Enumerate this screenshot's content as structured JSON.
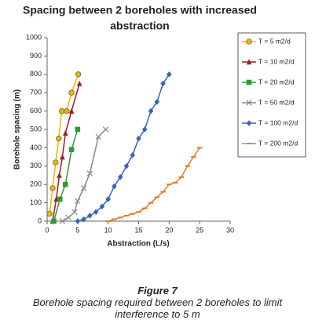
{
  "chart_data": {
    "type": "line",
    "title": [
      "Spacing between 2 boreholes with increased",
      "abstraction"
    ],
    "x_label": "Abstraction (L/s)",
    "y_label": "Borehole spacing (m)",
    "xlim": [
      0,
      30
    ],
    "xticks": [
      0,
      5,
      10,
      15,
      20,
      25,
      30
    ],
    "ylim": [
      0,
      1000
    ],
    "yticks": [
      0,
      100,
      200,
      300,
      400,
      500,
      600,
      700,
      800,
      900,
      1000
    ],
    "grid": false,
    "legend": "right",
    "series": [
      {
        "name": "T = 5 m2/d",
        "color": "#e8b800",
        "marker": "circle",
        "x": [
          0.4,
          0.9,
          1.4,
          1.9,
          2.4,
          3.2,
          4,
          5.1
        ],
        "values": [
          40,
          180,
          320,
          450,
          600,
          600,
          700,
          800
        ]
      },
      {
        "name": "T = 10 m2/d",
        "color": "#a51c1c",
        "marker": "triangle",
        "x": [
          0.9,
          1.5,
          2,
          2.5,
          3,
          4,
          5.3
        ],
        "values": [
          0,
          120,
          250,
          350,
          480,
          600,
          750
        ]
      },
      {
        "name": "T = 20 m2/d",
        "color": "#2e9a3a",
        "marker": "square",
        "x": [
          1.1,
          2.1,
          3,
          4,
          5
        ],
        "values": [
          0,
          120,
          200,
          390,
          500
        ]
      },
      {
        "name": "T = 50 m2/d",
        "color": "#888888",
        "marker": "x",
        "x": [
          2.5,
          3.5,
          4.5,
          5,
          6,
          7,
          8.4,
          9.6
        ],
        "values": [
          0,
          20,
          50,
          110,
          180,
          260,
          460,
          500
        ]
      },
      {
        "name": "T = 100 m2/d",
        "color": "#3a63b8",
        "marker": "diamond",
        "x": [
          5,
          6,
          7,
          8,
          9,
          10,
          11,
          12,
          13,
          14,
          15,
          16,
          17,
          18,
          19,
          20
        ],
        "values": [
          0,
          10,
          30,
          50,
          80,
          120,
          190,
          240,
          300,
          360,
          450,
          500,
          600,
          650,
          750,
          800
        ]
      },
      {
        "name": "T = 200 m2/d",
        "color": "#e8792a",
        "marker": "dash",
        "x": [
          10,
          11,
          12,
          13,
          14,
          15,
          16,
          17,
          18,
          19,
          20,
          21,
          22,
          23,
          24,
          25
        ],
        "values": [
          0,
          10,
          20,
          30,
          40,
          50,
          70,
          100,
          130,
          160,
          200,
          210,
          240,
          300,
          350,
          400
        ]
      }
    ]
  },
  "caption": {
    "label": "Figure 7",
    "text": "Borehole spacing required between 2 boreholes to limit interference to 5 m"
  }
}
